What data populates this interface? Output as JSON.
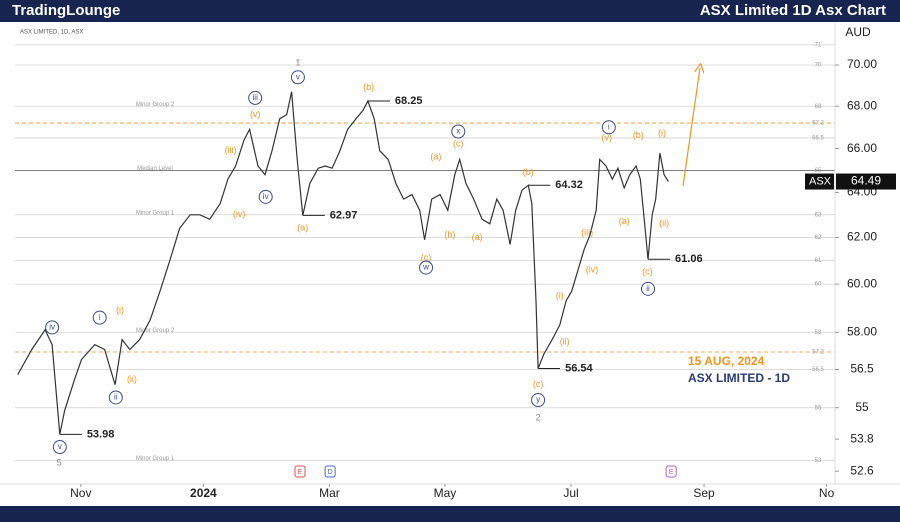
{
  "header": {
    "brand": "TradingLounge",
    "title": "ASX Limited 1D Asx Chart"
  },
  "chart_data": {
    "type": "line",
    "symbol_info": "ASX LIMITED, 1D, ASX",
    "currency": "AUD",
    "ticker": "ASX",
    "date_note": "15 AUG, 2024",
    "chart_name": "ASX LIMITED - 1D",
    "log_scale": true,
    "xlim": [
      -0.4,
      116.7
    ],
    "ylim": [
      52.2,
      72
    ],
    "xticks": [
      {
        "value": 9,
        "label": "Nov"
      },
      {
        "value": 26.5,
        "label": "2024"
      },
      {
        "value": 44.5,
        "label": "Mar"
      },
      {
        "value": 61,
        "label": "May"
      },
      {
        "value": 79,
        "label": "Jul"
      },
      {
        "value": 98,
        "label": "Sep"
      },
      {
        "value": 115.5,
        "label": "No"
      }
    ],
    "yticks": [
      {
        "value": 70,
        "label": "70.00"
      },
      {
        "value": 68,
        "label": "68.00"
      },
      {
        "value": 66,
        "label": "66.00"
      },
      {
        "value": 64,
        "label": "64.00"
      },
      {
        "value": 62,
        "label": "62.00"
      },
      {
        "value": 60,
        "label": "60.00"
      },
      {
        "value": 58,
        "label": "58.00"
      },
      56.5,
      55,
      53.8,
      52.6
    ],
    "series": [
      {
        "name": "ASX",
        "color": "#333333",
        "x": [
          0,
          2,
          3.9,
          4.9,
          6,
          6.7,
          8.1,
          9.1,
          11,
          12.4,
          13.9,
          14.9,
          16,
          17.4,
          18.9,
          20.3,
          21.7,
          23.1,
          24.6,
          26,
          27.4,
          28.9,
          30,
          31.1,
          32.3,
          33.1,
          34.3,
          35.3,
          36.3,
          37.4,
          38.4,
          39.1,
          39.9,
          40.7,
          41.7,
          42.9,
          43.9,
          44.9,
          46,
          47.1,
          48.3,
          49.3,
          50,
          50.9,
          51.7,
          52.9,
          54,
          55.1,
          56.3,
          57.4,
          58.1,
          59.1,
          60.3,
          61.4,
          62.4,
          63.1,
          64,
          65.1,
          66.3,
          67.4,
          68.4,
          69.3,
          70.3,
          71.1,
          72,
          72.9,
          73.4,
          74,
          74.3,
          75.1,
          76.3,
          77.4,
          78.3,
          79.1,
          80,
          80.9,
          81.7,
          82.6,
          83.1,
          84,
          84.9,
          85.7,
          86.6,
          87.4,
          88.3,
          88.9,
          89.4,
          90,
          90.6,
          91.1,
          91.7,
          92.3,
          92.9
        ],
        "values": [
          56.3,
          57.3,
          58.1,
          57.5,
          53.98,
          54.9,
          56.1,
          56.9,
          57.5,
          57.3,
          55.9,
          57.7,
          57.3,
          57.7,
          58.5,
          59.7,
          61.0,
          62.4,
          63.0,
          63.0,
          62.8,
          63.5,
          64.6,
          65.2,
          66.4,
          66.9,
          65.2,
          64.8,
          65.9,
          67.4,
          67.6,
          68.7,
          65.5,
          62.97,
          64.4,
          65.1,
          65.2,
          65.1,
          65.9,
          66.9,
          67.4,
          67.8,
          68.25,
          67.4,
          65.9,
          65.5,
          64.4,
          63.7,
          63.9,
          63.2,
          61.9,
          63.7,
          63.9,
          63.2,
          64.8,
          65.5,
          64.4,
          63.7,
          62.8,
          62.6,
          63.7,
          63.2,
          61.7,
          63.2,
          64.1,
          64.32,
          63.5,
          59.3,
          56.54,
          57.1,
          57.7,
          58.3,
          59.3,
          59.7,
          60.6,
          61.5,
          62.1,
          63.2,
          65.5,
          65.2,
          64.6,
          65.1,
          64.2,
          64.8,
          65.2,
          64.6,
          63.0,
          61.06,
          63.0,
          63.7,
          65.8,
          64.8,
          64.49
        ]
      }
    ],
    "levels": [
      {
        "value": 71,
        "color": "#d0d0d0"
      },
      {
        "value": 70,
        "color": "#d0d0d0"
      },
      {
        "value": 68,
        "color": "#d0d0d0",
        "name": "Minor Group 2"
      },
      {
        "value": 67.2,
        "color": "#f7931e"
      },
      {
        "value": 66.5,
        "color": "#d0d0d0"
      },
      {
        "value": 65,
        "color": "#555555",
        "name": "Median Level"
      },
      {
        "value": 63,
        "color": "#d0d0d0",
        "name": "Minor Group 1"
      },
      {
        "value": 62,
        "color": "#d0d0d0"
      },
      {
        "value": 61,
        "color": "#d0d0d0"
      },
      {
        "value": 60,
        "color": "#d0d0d0"
      },
      {
        "value": 58,
        "color": "#d0d0d0",
        "name": "Minor Group 2"
      },
      {
        "value": 57.2,
        "color": "#f7931e"
      },
      {
        "value": 56.5,
        "color": "#d0d0d0"
      },
      {
        "value": 55,
        "color": "#d0d0d0"
      },
      {
        "value": 53,
        "color": "#d0d0d0",
        "name": "Minor Group 1"
      }
    ],
    "price_marks": [
      {
        "value": 53.98,
        "x": 6
      },
      {
        "value": 62.97,
        "x": 40.7
      },
      {
        "value": 68.25,
        "x": 50
      },
      {
        "value": 64.32,
        "x": 72.9
      },
      {
        "value": 56.54,
        "x": 74.3
      },
      {
        "value": 61.06,
        "x": 90
      }
    ],
    "wave_labels": [
      {
        "text": "(i)",
        "x": 14.6,
        "y": 58.9,
        "style": "minor"
      },
      {
        "text": "(ii)",
        "x": 16.3,
        "y": 56.1,
        "style": "minor"
      },
      {
        "text": "(iii)",
        "x": 30.4,
        "y": 65.9,
        "style": "minor"
      },
      {
        "text": "(iv)",
        "x": 31.6,
        "y": 63.0,
        "style": "minor"
      },
      {
        "text": "(v)",
        "x": 33.9,
        "y": 67.6,
        "style": "minor"
      },
      {
        "text": "(a)",
        "x": 40.7,
        "y": 62.4,
        "style": "minor"
      },
      {
        "text": "(b)",
        "x": 50.1,
        "y": 68.9,
        "style": "minor"
      },
      {
        "text": "(a)",
        "x": 59.7,
        "y": 65.6,
        "style": "minor"
      },
      {
        "text": "(c)",
        "x": 62.9,
        "y": 66.2,
        "style": "minor"
      },
      {
        "text": "(c)",
        "x": 58.3,
        "y": 61.1,
        "style": "minor"
      },
      {
        "text": "(b)",
        "x": 61.7,
        "y": 62.1,
        "style": "minor"
      },
      {
        "text": "(a)",
        "x": 65.6,
        "y": 62.0,
        "style": "minor"
      },
      {
        "text": "(b)",
        "x": 72.9,
        "y": 64.9,
        "style": "minor"
      },
      {
        "text": "(c)",
        "x": 74.3,
        "y": 55.9,
        "style": "minor"
      },
      {
        "text": "(ii)",
        "x": 78.1,
        "y": 57.6,
        "style": "minor"
      },
      {
        "text": "(i)",
        "x": 77.4,
        "y": 59.5,
        "style": "minor"
      },
      {
        "text": "(iii)",
        "x": 81.3,
        "y": 62.2,
        "style": "minor"
      },
      {
        "text": "(iv)",
        "x": 82,
        "y": 60.6,
        "style": "minor"
      },
      {
        "text": "(v)",
        "x": 84.1,
        "y": 66.5,
        "style": "minor"
      },
      {
        "text": "(a)",
        "x": 86.6,
        "y": 62.7,
        "style": "minor"
      },
      {
        "text": "(b)",
        "x": 88.6,
        "y": 66.6,
        "style": "minor"
      },
      {
        "text": "(c)",
        "x": 89.9,
        "y": 60.5,
        "style": "minor"
      },
      {
        "text": "(i)",
        "x": 92,
        "y": 66.7,
        "style": "minor"
      },
      {
        "text": "(ii)",
        "x": 92.3,
        "y": 62.6,
        "style": "minor"
      },
      {
        "text": "iv",
        "x": 4.9,
        "y": 58.2,
        "style": "minute"
      },
      {
        "text": "i",
        "x": 11.7,
        "y": 58.6,
        "style": "minute"
      },
      {
        "text": "ii",
        "x": 14,
        "y": 55.4,
        "style": "minute"
      },
      {
        "text": "v",
        "x": 6,
        "y": 53.5,
        "style": "minute"
      },
      {
        "text": "iii",
        "x": 33.9,
        "y": 68.4,
        "style": "minute"
      },
      {
        "text": "iv",
        "x": 35.4,
        "y": 63.8,
        "style": "minute"
      },
      {
        "text": "v",
        "x": 40,
        "y": 69.4,
        "style": "minute"
      },
      {
        "text": "x",
        "x": 62.9,
        "y": 66.8,
        "style": "minute"
      },
      {
        "text": "w",
        "x": 58.3,
        "y": 60.7,
        "style": "minute"
      },
      {
        "text": "y",
        "x": 74.3,
        "y": 55.3,
        "style": "minute"
      },
      {
        "text": "i",
        "x": 84.4,
        "y": 67.0,
        "style": "minute"
      },
      {
        "text": "ii",
        "x": 90,
        "y": 59.8,
        "style": "minute"
      },
      {
        "text": "5",
        "x": 5.9,
        "y": 52.9,
        "style": "minor-degree"
      },
      {
        "text": "1",
        "x": 40,
        "y": 70.1,
        "style": "minor-degree"
      },
      {
        "text": "2",
        "x": 74.3,
        "y": 54.6,
        "style": "minor-degree"
      }
    ],
    "events": [
      {
        "text": "E",
        "x": 40.3,
        "color": "#e05050"
      },
      {
        "text": "D",
        "x": 44.6,
        "color": "#4a6ad0"
      },
      {
        "text": "E",
        "x": 93.3,
        "color": "#b060d0"
      }
    ]
  }
}
